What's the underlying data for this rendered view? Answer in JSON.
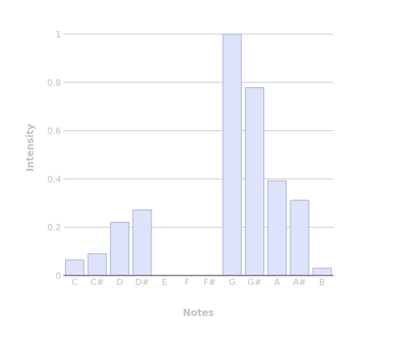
{
  "chart_data": {
    "type": "bar",
    "categories": [
      "C",
      "C#",
      "D",
      "D#",
      "E",
      "F",
      "F#",
      "G",
      "G#",
      "A",
      "A#",
      "B"
    ],
    "values": [
      0.065,
      0.09,
      0.22,
      0.272,
      0,
      0,
      0,
      1.0,
      0.778,
      0.392,
      0.312,
      0.03
    ],
    "xlabel": "Notes",
    "ylabel": "Intensity",
    "ylim": [
      0,
      1
    ],
    "yticks": [
      "0",
      "0.2",
      "0.4",
      "0.6",
      "0.8",
      "1"
    ],
    "ytick_values": [
      0,
      0.2,
      0.4,
      0.6,
      0.8,
      1
    ],
    "grid": true,
    "legend": "none",
    "colors": {
      "bar_fill": "#dde3fb",
      "bar_stroke": "#a8afd0",
      "grid": "#c8c8c8",
      "text": "#c0c0c0",
      "axis": "#6f6f6f"
    }
  }
}
